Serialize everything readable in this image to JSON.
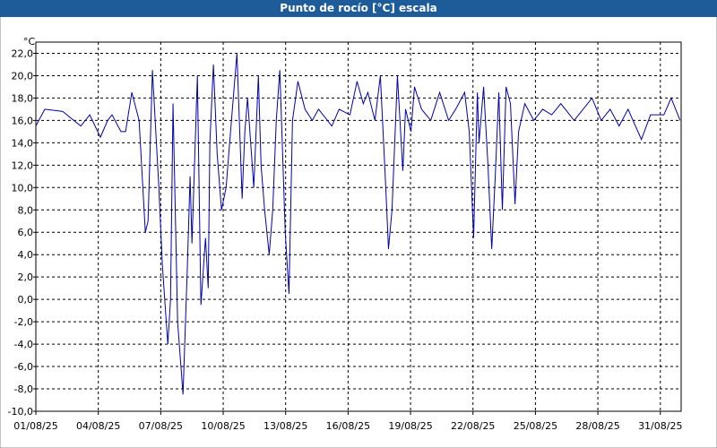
{
  "chart_data": {
    "type": "line",
    "title": "Punto de rocío [°C] escala",
    "y_label": "°C",
    "color": "#0000b0",
    "grid": true,
    "xlim": [
      0,
      31
    ],
    "xticks": [
      {
        "value": 0,
        "label": "01/08/25"
      },
      {
        "value": 3,
        "label": "04/08/25"
      },
      {
        "value": 6,
        "label": "07/08/25"
      },
      {
        "value": 9,
        "label": "10/08/25"
      },
      {
        "value": 12,
        "label": "13/08/25"
      },
      {
        "value": 15,
        "label": "16/08/25"
      },
      {
        "value": 18,
        "label": "19/08/25"
      },
      {
        "value": 21,
        "label": "22/08/25"
      },
      {
        "value": 24,
        "label": "25/08/25"
      },
      {
        "value": 27,
        "label": "28/08/25"
      },
      {
        "value": 30,
        "label": "31/08/25"
      }
    ],
    "ylim": [
      -10,
      23
    ],
    "yticks": [
      {
        "value": -10,
        "label": "-10,0"
      },
      {
        "value": -8,
        "label": "-8,0"
      },
      {
        "value": -6,
        "label": "-6,0"
      },
      {
        "value": -4,
        "label": "-4,0"
      },
      {
        "value": -2,
        "label": "-2,0"
      },
      {
        "value": 0,
        "label": "0,0"
      },
      {
        "value": 2,
        "label": "2,0"
      },
      {
        "value": 4,
        "label": "4,0"
      },
      {
        "value": 6,
        "label": "6,0"
      },
      {
        "value": 8,
        "label": "8,0"
      },
      {
        "value": 10,
        "label": "10,0"
      },
      {
        "value": 12,
        "label": "12,0"
      },
      {
        "value": 14,
        "label": "14,0"
      },
      {
        "value": 16,
        "label": "16,0"
      },
      {
        "value": 18,
        "label": "18,0"
      },
      {
        "value": 20,
        "label": "20,0"
      },
      {
        "value": 22,
        "label": "22,0"
      }
    ],
    "x": [
      0,
      0.43,
      1.29,
      2.16,
      2.59,
      3.1,
      3.45,
      3.66,
      4.09,
      4.31,
      4.61,
      4.96,
      5.26,
      5.39,
      5.6,
      5.91,
      6.08,
      6.34,
      6.47,
      6.59,
      6.81,
      7.07,
      7.28,
      7.41,
      7.5,
      7.76,
      7.93,
      8.15,
      8.28,
      8.36,
      8.53,
      8.71,
      8.92,
      9.14,
      9.31,
      9.66,
      9.91,
      10.04,
      10.17,
      10.47,
      10.69,
      10.82,
      10.99,
      11.21,
      11.38,
      11.55,
      11.72,
      11.98,
      12.16,
      12.33,
      12.59,
      12.93,
      13.28,
      13.58,
      14.22,
      14.57,
      15.09,
      15.43,
      15.73,
      15.95,
      16.29,
      16.55,
      16.81,
      16.94,
      17.11,
      17.37,
      17.63,
      17.76,
      18.02,
      18.19,
      18.53,
      18.97,
      19.4,
      19.83,
      20.17,
      20.6,
      20.82,
      21.03,
      21.21,
      21.29,
      21.51,
      21.72,
      21.9,
      22.07,
      22.24,
      22.41,
      22.59,
      22.8,
      23.02,
      23.19,
      23.49,
      23.92,
      24.35,
      24.78,
      25.22,
      25.86,
      26.72,
      27.16,
      27.59,
      28.02,
      28.45,
      29.09,
      29.53,
      30.17,
      30.52,
      30.95
    ],
    "values": [
      15.5,
      17,
      16.8,
      15.5,
      16.5,
      14.5,
      16,
      16.5,
      15,
      15,
      18.5,
      16,
      6,
      7,
      20.5,
      10,
      3,
      -4,
      0,
      17.5,
      -2,
      -8.5,
      3,
      11,
      5,
      20,
      -0.5,
      5.5,
      1,
      14,
      21,
      13,
      8,
      10,
      14,
      22,
      9,
      15,
      18,
      10,
      20,
      12,
      8,
      4,
      8,
      16,
      20.5,
      6,
      0.5,
      16,
      19.5,
      17,
      16,
      17,
      15.5,
      17,
      16.5,
      19.5,
      17.5,
      18.5,
      16,
      20,
      10,
      4.5,
      8,
      20,
      11.5,
      17,
      15,
      19,
      17,
      16,
      18.5,
      16,
      17,
      18.5,
      15,
      5.5,
      18.5,
      14,
      19,
      12,
      4.5,
      11,
      18.5,
      8,
      19,
      17.5,
      8.5,
      15,
      17.5,
      16,
      17,
      16.5,
      17.5,
      16,
      18,
      16,
      17,
      15.5,
      17,
      14.3,
      16.5,
      16.5,
      18,
      16
    ]
  }
}
